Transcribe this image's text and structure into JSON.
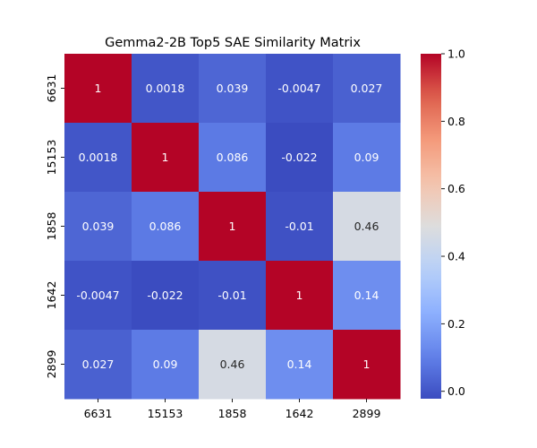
{
  "chart_data": {
    "type": "heatmap",
    "title": "Gemma2-2B Top5 SAE Similarity Matrix",
    "x_labels": [
      "6631",
      "15153",
      "1858",
      "1642",
      "2899"
    ],
    "y_labels": [
      "6631",
      "15153",
      "1858",
      "1642",
      "2899"
    ],
    "values": [
      [
        1,
        0.0018,
        0.039,
        -0.0047,
        0.027
      ],
      [
        0.0018,
        1,
        0.086,
        -0.022,
        0.09
      ],
      [
        0.039,
        0.086,
        1,
        -0.01,
        0.46
      ],
      [
        -0.0047,
        -0.022,
        -0.01,
        1,
        0.14
      ],
      [
        0.027,
        0.09,
        0.46,
        0.14,
        1
      ]
    ],
    "annotations": [
      [
        "1",
        "0.0018",
        "0.039",
        "-0.0047",
        "0.027"
      ],
      [
        "0.0018",
        "1",
        "0.086",
        "-0.022",
        "0.09"
      ],
      [
        "0.039",
        "0.086",
        "1",
        "-0.01",
        "0.46"
      ],
      [
        "-0.0047",
        "-0.022",
        "-0.01",
        "1",
        "0.14"
      ],
      [
        "0.027",
        "0.09",
        "0.46",
        "0.14",
        "1"
      ]
    ],
    "colormap": "coolwarm",
    "vmin": -0.022,
    "vmax": 1.0,
    "colorbar": {
      "ticks": [
        0.0,
        0.2,
        0.4,
        0.6,
        0.8,
        1.0
      ],
      "tick_labels": [
        "0.0",
        "0.2",
        "0.4",
        "0.6",
        "0.8",
        "1.0"
      ]
    }
  }
}
